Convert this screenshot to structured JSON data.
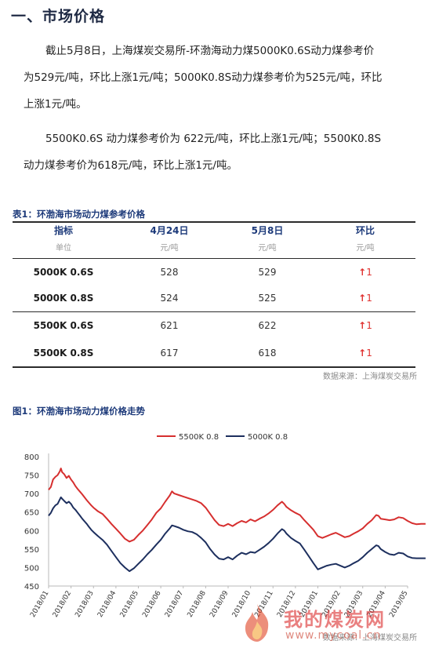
{
  "section_title": "一、市场价格",
  "paragraphs": {
    "p1_line1": "截止5月8日，上海煤炭交易所-环渤海动力煤5000K0.6S动力煤参考价",
    "p1_line2": "为529元/吨，环比上涨1元/吨；5000K0.8S动力煤参考价为525元/吨，环比",
    "p1_line3": "上涨1元/吨。",
    "p2_line1": "5500K0.6S 动力煤参考价为 622元/吨，环比上涨1元/吨；5500K0.8S",
    "p2_line2": "动力煤参考价为618元/吨，环比上涨1元/吨。"
  },
  "table": {
    "caption": "表1：环渤海市场动力煤参考价格",
    "headers": [
      "指标",
      "4月24日",
      "5月8日",
      "环比"
    ],
    "units": [
      "单位",
      "元/吨",
      "元/吨",
      "元/吨"
    ],
    "rows": [
      {
        "name": "5000K 0.6S",
        "prev": "528",
        "curr": "529",
        "arrow": "↑",
        "change": "1"
      },
      {
        "name": "5000K 0.8S",
        "prev": "524",
        "curr": "525",
        "arrow": "↑",
        "change": "1"
      },
      {
        "name": "5500K 0.6S",
        "prev": "621",
        "curr": "622",
        "arrow": "↑",
        "change": "1"
      },
      {
        "name": "5500K 0.8S",
        "prev": "617",
        "curr": "618",
        "arrow": "↑",
        "change": "1"
      }
    ],
    "source": "数据来源：上海煤炭交易所"
  },
  "figure": {
    "caption": "图1：环渤海市场动力煤价格走势",
    "source": "数据来源：上海煤炭交易所"
  },
  "watermark": {
    "title": "我的煤炭网",
    "url": "www.mycoal.cn"
  },
  "chart_data": {
    "type": "line",
    "title": "",
    "xlabel": "",
    "ylabel": "",
    "ylim": [
      450,
      800
    ],
    "yticks": [
      450,
      500,
      550,
      600,
      650,
      700,
      750,
      800
    ],
    "xticks": [
      "2018/01",
      "2018/02",
      "2018/03",
      "2018/04",
      "2018/05",
      "2018/06",
      "2018/07",
      "2018/08",
      "2018/09",
      "2018/10",
      "2018/11",
      "2018/12",
      "2019/01",
      "2019/02",
      "2019/03",
      "2019/04",
      "2019/05"
    ],
    "grid": false,
    "legend": "top-center",
    "colors": {
      "s5500": "#d62f2f",
      "s5000": "#1d2f5e",
      "axis": "#b8b8b8"
    },
    "series": [
      {
        "name": "5500K 0.8",
        "points": [
          [
            0.0,
            710
          ],
          [
            0.1,
            718
          ],
          [
            0.2,
            738
          ],
          [
            0.3,
            745
          ],
          [
            0.4,
            750
          ],
          [
            0.5,
            760
          ],
          [
            0.55,
            768
          ],
          [
            0.6,
            758
          ],
          [
            0.7,
            752
          ],
          [
            0.8,
            742
          ],
          [
            0.9,
            748
          ],
          [
            1.0,
            738
          ],
          [
            1.1,
            730
          ],
          [
            1.2,
            720
          ],
          [
            1.3,
            712
          ],
          [
            1.4,
            705
          ],
          [
            1.5,
            698
          ],
          [
            1.6,
            690
          ],
          [
            1.7,
            682
          ],
          [
            1.8,
            675
          ],
          [
            1.9,
            668
          ],
          [
            2.0,
            662
          ],
          [
            2.2,
            652
          ],
          [
            2.4,
            645
          ],
          [
            2.6,
            632
          ],
          [
            2.8,
            618
          ],
          [
            3.0,
            605
          ],
          [
            3.2,
            592
          ],
          [
            3.4,
            578
          ],
          [
            3.6,
            570
          ],
          [
            3.8,
            575
          ],
          [
            4.0,
            588
          ],
          [
            4.2,
            600
          ],
          [
            4.4,
            615
          ],
          [
            4.6,
            630
          ],
          [
            4.8,
            648
          ],
          [
            5.0,
            660
          ],
          [
            5.2,
            678
          ],
          [
            5.4,
            695
          ],
          [
            5.5,
            706
          ],
          [
            5.6,
            700
          ],
          [
            5.8,
            696
          ],
          [
            6.0,
            692
          ],
          [
            6.2,
            688
          ],
          [
            6.4,
            684
          ],
          [
            6.6,
            680
          ],
          [
            6.8,
            674
          ],
          [
            7.0,
            662
          ],
          [
            7.2,
            645
          ],
          [
            7.4,
            628
          ],
          [
            7.6,
            615
          ],
          [
            7.8,
            612
          ],
          [
            8.0,
            618
          ],
          [
            8.2,
            612
          ],
          [
            8.4,
            620
          ],
          [
            8.6,
            626
          ],
          [
            8.8,
            622
          ],
          [
            9.0,
            630
          ],
          [
            9.2,
            625
          ],
          [
            9.4,
            632
          ],
          [
            9.6,
            638
          ],
          [
            9.8,
            646
          ],
          [
            10.0,
            656
          ],
          [
            10.2,
            668
          ],
          [
            10.4,
            678
          ],
          [
            10.5,
            672
          ],
          [
            10.6,
            664
          ],
          [
            10.8,
            655
          ],
          [
            11.0,
            648
          ],
          [
            11.2,
            642
          ],
          [
            11.4,
            628
          ],
          [
            11.6,
            615
          ],
          [
            11.8,
            602
          ],
          [
            12.0,
            585
          ],
          [
            12.2,
            580
          ],
          [
            12.4,
            585
          ],
          [
            12.6,
            590
          ],
          [
            12.8,
            594
          ],
          [
            13.0,
            588
          ],
          [
            13.2,
            582
          ],
          [
            13.4,
            585
          ],
          [
            13.6,
            592
          ],
          [
            13.8,
            598
          ],
          [
            14.0,
            606
          ],
          [
            14.2,
            618
          ],
          [
            14.4,
            628
          ],
          [
            14.6,
            642
          ],
          [
            14.7,
            640
          ],
          [
            14.8,
            632
          ],
          [
            15.0,
            630
          ],
          [
            15.2,
            628
          ],
          [
            15.4,
            630
          ],
          [
            15.6,
            636
          ],
          [
            15.8,
            634
          ],
          [
            16.0,
            626
          ],
          [
            16.2,
            620
          ],
          [
            16.4,
            617
          ],
          [
            16.6,
            618
          ],
          [
            16.8,
            618
          ]
        ]
      },
      {
        "name": "5000K 0.8",
        "points": [
          [
            0.0,
            640
          ],
          [
            0.1,
            648
          ],
          [
            0.2,
            660
          ],
          [
            0.3,
            668
          ],
          [
            0.4,
            672
          ],
          [
            0.5,
            684
          ],
          [
            0.55,
            690
          ],
          [
            0.6,
            686
          ],
          [
            0.7,
            680
          ],
          [
            0.8,
            674
          ],
          [
            0.9,
            678
          ],
          [
            1.0,
            672
          ],
          [
            1.1,
            662
          ],
          [
            1.2,
            656
          ],
          [
            1.3,
            648
          ],
          [
            1.4,
            640
          ],
          [
            1.5,
            632
          ],
          [
            1.6,
            625
          ],
          [
            1.7,
            618
          ],
          [
            1.8,
            610
          ],
          [
            1.9,
            602
          ],
          [
            2.0,
            596
          ],
          [
            2.2,
            585
          ],
          [
            2.4,
            575
          ],
          [
            2.6,
            562
          ],
          [
            2.8,
            545
          ],
          [
            3.0,
            528
          ],
          [
            3.2,
            512
          ],
          [
            3.4,
            500
          ],
          [
            3.6,
            490
          ],
          [
            3.8,
            498
          ],
          [
            4.0,
            510
          ],
          [
            4.2,
            522
          ],
          [
            4.4,
            536
          ],
          [
            4.6,
            548
          ],
          [
            4.8,
            562
          ],
          [
            5.0,
            575
          ],
          [
            5.2,
            592
          ],
          [
            5.4,
            606
          ],
          [
            5.5,
            614
          ],
          [
            5.6,
            612
          ],
          [
            5.8,
            608
          ],
          [
            6.0,
            602
          ],
          [
            6.2,
            598
          ],
          [
            6.4,
            596
          ],
          [
            6.6,
            590
          ],
          [
            6.8,
            580
          ],
          [
            7.0,
            568
          ],
          [
            7.2,
            550
          ],
          [
            7.4,
            535
          ],
          [
            7.6,
            524
          ],
          [
            7.8,
            522
          ],
          [
            8.0,
            528
          ],
          [
            8.2,
            522
          ],
          [
            8.4,
            532
          ],
          [
            8.6,
            540
          ],
          [
            8.8,
            536
          ],
          [
            9.0,
            542
          ],
          [
            9.2,
            540
          ],
          [
            9.4,
            548
          ],
          [
            9.6,
            556
          ],
          [
            9.8,
            566
          ],
          [
            10.0,
            578
          ],
          [
            10.2,
            592
          ],
          [
            10.4,
            604
          ],
          [
            10.5,
            600
          ],
          [
            10.6,
            592
          ],
          [
            10.8,
            580
          ],
          [
            11.0,
            572
          ],
          [
            11.2,
            565
          ],
          [
            11.4,
            548
          ],
          [
            11.6,
            530
          ],
          [
            11.8,
            512
          ],
          [
            12.0,
            495
          ],
          [
            12.2,
            500
          ],
          [
            12.4,
            505
          ],
          [
            12.6,
            508
          ],
          [
            12.8,
            510
          ],
          [
            13.0,
            505
          ],
          [
            13.2,
            500
          ],
          [
            13.4,
            505
          ],
          [
            13.6,
            512
          ],
          [
            13.8,
            518
          ],
          [
            14.0,
            528
          ],
          [
            14.2,
            540
          ],
          [
            14.4,
            550
          ],
          [
            14.6,
            560
          ],
          [
            14.7,
            558
          ],
          [
            14.8,
            550
          ],
          [
            15.0,
            542
          ],
          [
            15.2,
            536
          ],
          [
            15.4,
            534
          ],
          [
            15.6,
            540
          ],
          [
            15.8,
            538
          ],
          [
            16.0,
            530
          ],
          [
            16.2,
            526
          ],
          [
            16.4,
            525
          ],
          [
            16.6,
            525
          ],
          [
            16.8,
            525
          ]
        ]
      }
    ]
  }
}
